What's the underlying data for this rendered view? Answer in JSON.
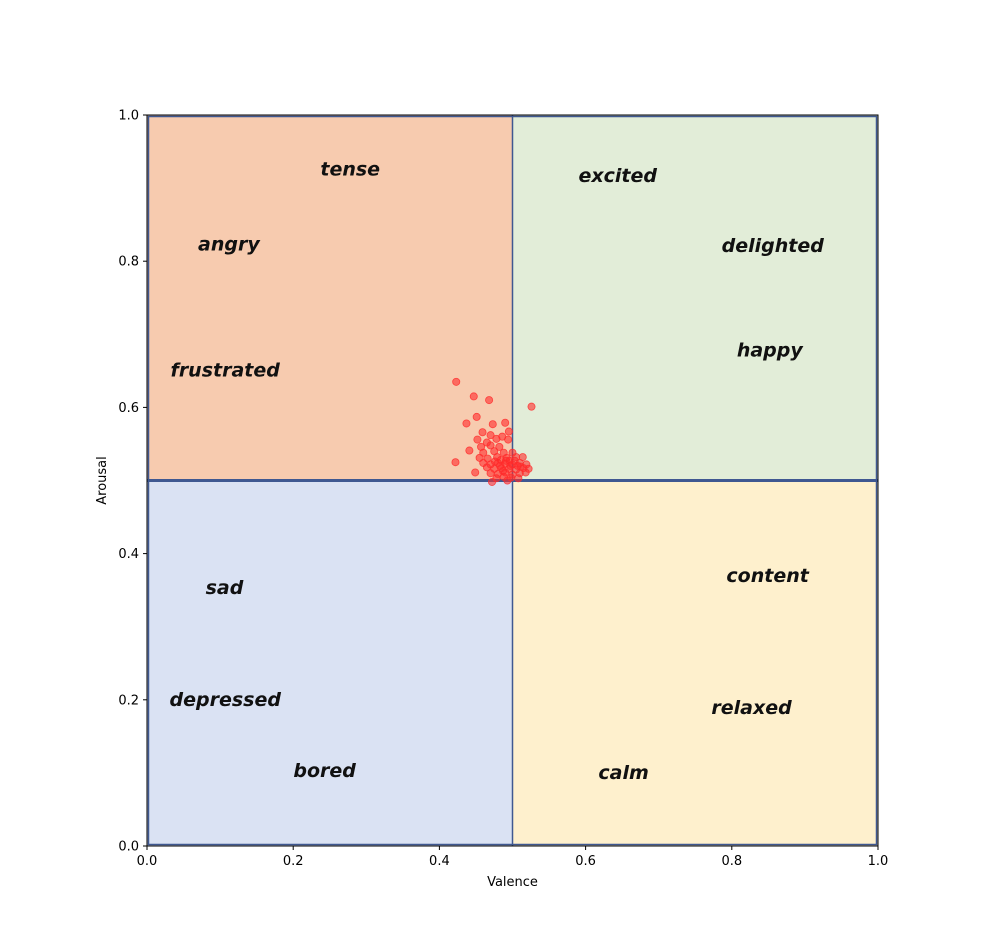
{
  "chart_data": {
    "type": "scatter",
    "title": "",
    "xlabel": "Valence",
    "ylabel": "Arousal",
    "xlim": [
      0.0,
      1.0
    ],
    "ylim": [
      0.0,
      1.0
    ],
    "grid": false,
    "x_ticks": [
      "0.0",
      "0.2",
      "0.4",
      "0.6",
      "0.8",
      "1.0"
    ],
    "y_ticks": [
      "0.0",
      "0.2",
      "0.4",
      "0.6",
      "0.8",
      "1.0"
    ],
    "quadrants": [
      {
        "name": "upper-left",
        "x_range": [
          0.0,
          0.5
        ],
        "y_range": [
          0.5,
          1.0
        ],
        "color": "#f7cbaf"
      },
      {
        "name": "upper-right",
        "x_range": [
          0.5,
          1.0
        ],
        "y_range": [
          0.5,
          1.0
        ],
        "color": "#e2edd8"
      },
      {
        "name": "lower-left",
        "x_range": [
          0.0,
          0.5
        ],
        "y_range": [
          0.0,
          0.5
        ],
        "color": "#dae2f3"
      },
      {
        "name": "lower-right",
        "x_range": [
          0.5,
          1.0
        ],
        "y_range": [
          0.0,
          0.5
        ],
        "color": "#fef0cd"
      }
    ],
    "divider_color": "#3f5891",
    "point_color": "#ff2b2b",
    "emotion_labels": [
      {
        "text": "tense",
        "x": 0.278,
        "y": 0.925
      },
      {
        "text": "angry",
        "x": 0.112,
        "y": 0.822
      },
      {
        "text": "frustrated",
        "x": 0.107,
        "y": 0.65
      },
      {
        "text": "excited",
        "x": 0.644,
        "y": 0.916
      },
      {
        "text": "delighted",
        "x": 0.856,
        "y": 0.82
      },
      {
        "text": "happy",
        "x": 0.852,
        "y": 0.677
      },
      {
        "text": "sad",
        "x": 0.106,
        "y": 0.352
      },
      {
        "text": "depressed",
        "x": 0.107,
        "y": 0.199
      },
      {
        "text": "bored",
        "x": 0.243,
        "y": 0.102
      },
      {
        "text": "content",
        "x": 0.849,
        "y": 0.369
      },
      {
        "text": "relaxed",
        "x": 0.827,
        "y": 0.188
      },
      {
        "text": "calm",
        "x": 0.652,
        "y": 0.099
      }
    ],
    "points": [
      [
        0.423,
        0.635
      ],
      [
        0.447,
        0.615
      ],
      [
        0.468,
        0.61
      ],
      [
        0.526,
        0.601
      ],
      [
        0.451,
        0.587
      ],
      [
        0.473,
        0.577
      ],
      [
        0.49,
        0.579
      ],
      [
        0.437,
        0.578
      ],
      [
        0.459,
        0.566
      ],
      [
        0.47,
        0.562
      ],
      [
        0.495,
        0.567
      ],
      [
        0.452,
        0.556
      ],
      [
        0.478,
        0.557
      ],
      [
        0.486,
        0.56
      ],
      [
        0.494,
        0.556
      ],
      [
        0.465,
        0.552
      ],
      [
        0.441,
        0.541
      ],
      [
        0.457,
        0.546
      ],
      [
        0.47,
        0.548
      ],
      [
        0.482,
        0.546
      ],
      [
        0.46,
        0.538
      ],
      [
        0.475,
        0.54
      ],
      [
        0.488,
        0.538
      ],
      [
        0.5,
        0.538
      ],
      [
        0.422,
        0.525
      ],
      [
        0.455,
        0.531
      ],
      [
        0.466,
        0.53
      ],
      [
        0.479,
        0.532
      ],
      [
        0.492,
        0.531
      ],
      [
        0.505,
        0.532
      ],
      [
        0.514,
        0.532
      ],
      [
        0.46,
        0.524
      ],
      [
        0.47,
        0.522
      ],
      [
        0.48,
        0.524
      ],
      [
        0.49,
        0.523
      ],
      [
        0.5,
        0.522
      ],
      [
        0.51,
        0.524
      ],
      [
        0.519,
        0.522
      ],
      [
        0.465,
        0.518
      ],
      [
        0.475,
        0.516
      ],
      [
        0.485,
        0.517
      ],
      [
        0.495,
        0.516
      ],
      [
        0.505,
        0.515
      ],
      [
        0.515,
        0.517
      ],
      [
        0.522,
        0.516
      ],
      [
        0.449,
        0.511
      ],
      [
        0.47,
        0.51
      ],
      [
        0.48,
        0.509
      ],
      [
        0.49,
        0.511
      ],
      [
        0.5,
        0.508
      ],
      [
        0.51,
        0.51
      ],
      [
        0.518,
        0.511
      ],
      [
        0.478,
        0.503
      ],
      [
        0.488,
        0.505
      ],
      [
        0.498,
        0.504
      ],
      [
        0.508,
        0.503
      ],
      [
        0.472,
        0.498
      ],
      [
        0.493,
        0.5
      ],
      [
        0.484,
        0.528
      ],
      [
        0.496,
        0.527
      ],
      [
        0.503,
        0.527
      ],
      [
        0.511,
        0.519
      ],
      [
        0.476,
        0.526
      ],
      [
        0.487,
        0.513
      ],
      [
        0.497,
        0.52
      ],
      [
        0.507,
        0.52
      ],
      [
        0.483,
        0.52
      ],
      [
        0.491,
        0.527
      ]
    ]
  }
}
